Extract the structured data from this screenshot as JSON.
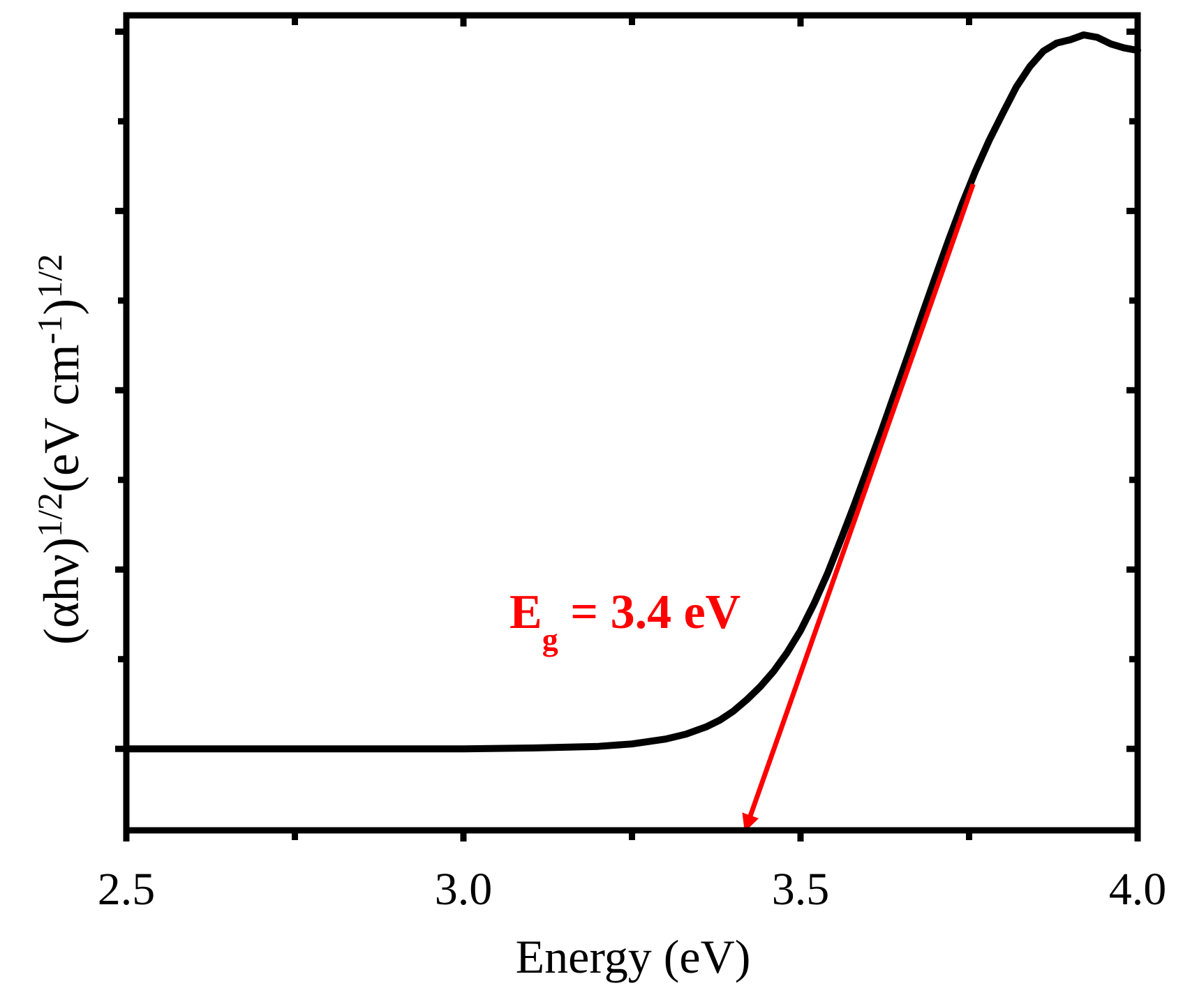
{
  "chart_data": {
    "type": "line",
    "title": "",
    "xlabel": "Energy (eV)",
    "ylabel": {
      "prefix": "(αhν)",
      "sup1": "1/2",
      "mid": "(eV cm",
      "sup2": "-1",
      "suffix": ")",
      "sup3": "1/2"
    },
    "xlim": [
      2.5,
      4.0
    ],
    "ylim": [
      0,
      1
    ],
    "y_tick_labels_shown": false,
    "x_major_ticks": [
      2.5,
      3.0,
      3.5,
      4.0
    ],
    "x_tick_labels": [
      "2.5",
      "3.0",
      "3.5",
      "4.0"
    ],
    "x_minor_ticks": [
      2.75,
      3.25,
      3.75
    ],
    "y_major_ticks": [
      0.1,
      0.32,
      0.54,
      0.76,
      0.98
    ],
    "y_minor_ticks": [
      0.21,
      0.43,
      0.65,
      0.87
    ],
    "grid": false,
    "series": [
      {
        "color": "#000000",
        "x": [
          2.5,
          2.7,
          2.9,
          3.0,
          3.1,
          3.2,
          3.25,
          3.3,
          3.33,
          3.36,
          3.38,
          3.4,
          3.42,
          3.44,
          3.46,
          3.48,
          3.5,
          3.52,
          3.54,
          3.56,
          3.58,
          3.6,
          3.62,
          3.64,
          3.66,
          3.68,
          3.7,
          3.72,
          3.74,
          3.76,
          3.78,
          3.8,
          3.82,
          3.84,
          3.86,
          3.88,
          3.9,
          3.92,
          3.94,
          3.96,
          3.98,
          4.0
        ],
        "y": [
          0.1,
          0.1,
          0.1,
          0.1,
          0.101,
          0.103,
          0.106,
          0.112,
          0.118,
          0.127,
          0.135,
          0.146,
          0.16,
          0.176,
          0.195,
          0.218,
          0.245,
          0.278,
          0.315,
          0.357,
          0.4,
          0.445,
          0.49,
          0.537,
          0.584,
          0.632,
          0.679,
          0.725,
          0.769,
          0.81,
          0.847,
          0.88,
          0.912,
          0.937,
          0.956,
          0.966,
          0.97,
          0.976,
          0.973,
          0.965,
          0.96,
          0.957
        ]
      }
    ],
    "fit_line": {
      "color": "#ff0000",
      "x": [
        3.756,
        3.418
      ],
      "y": [
        0.793,
        0.0
      ]
    },
    "annotation": {
      "text_main": "E",
      "text_sub": "g",
      "text_rest": " = 3.4 eV",
      "color": "#ff0000"
    }
  }
}
